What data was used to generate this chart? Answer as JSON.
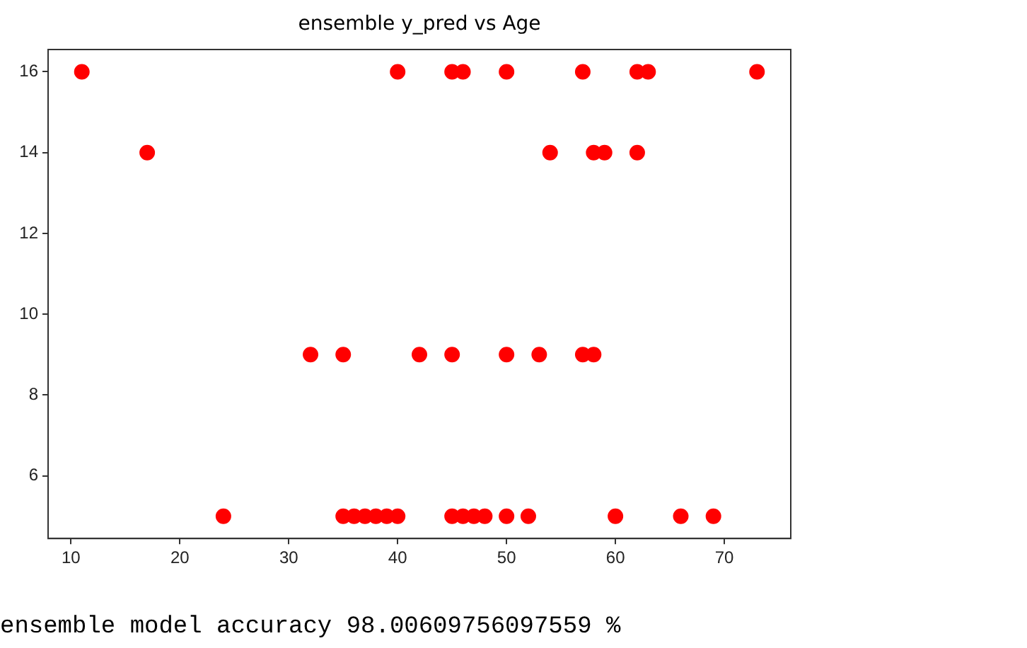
{
  "chart_data": {
    "type": "scatter",
    "title": "ensemble y_pred vs Age",
    "x": [
      11,
      40,
      45,
      46,
      50,
      57,
      62,
      63,
      73,
      17,
      54,
      58,
      59,
      62,
      32,
      35,
      42,
      45,
      50,
      53,
      57,
      58,
      24,
      35,
      36,
      37,
      38,
      39,
      40,
      45,
      46,
      47,
      48,
      50,
      52,
      60,
      66,
      69
    ],
    "values": [
      16,
      16,
      16,
      16,
      16,
      16,
      16,
      16,
      16,
      14,
      14,
      14,
      14,
      14,
      9,
      9,
      9,
      9,
      9,
      9,
      9,
      9,
      5,
      5,
      5,
      5,
      5,
      5,
      5,
      5,
      5,
      5,
      5,
      5,
      5,
      5,
      5,
      5
    ],
    "color": "#ff0000",
    "marker": "circle",
    "xlim": [
      7.9,
      76.1
    ],
    "xticks": [
      10,
      20,
      30,
      40,
      50,
      60,
      70
    ],
    "ylim": [
      4.45,
      16.55
    ],
    "yticks": [
      6,
      8,
      10,
      12,
      14,
      16
    ],
    "grid": false,
    "legend": false,
    "annotations": [
      "ensemble model accuracy 98.00609756097559 %"
    ]
  }
}
